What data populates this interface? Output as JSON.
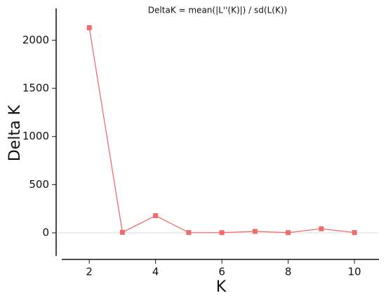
{
  "chart_data": {
    "type": "line",
    "title": "DeltaK = mean(|L''(K)|) / sd(L(K))",
    "x_label": "K",
    "y_label": "Delta K",
    "x": [
      2,
      3,
      4,
      5,
      6,
      7,
      8,
      9,
      10
    ],
    "values": [
      2130,
      5,
      178,
      3,
      2,
      15,
      2,
      42,
      3
    ],
    "color": "#f26b6b",
    "xlim": [
      1.17,
      10.74
    ],
    "xticks": [
      2,
      4,
      6,
      8,
      10
    ],
    "ylim": [
      -240,
      2330
    ],
    "yticks": [
      0,
      500,
      1000,
      1500,
      2000
    ]
  }
}
